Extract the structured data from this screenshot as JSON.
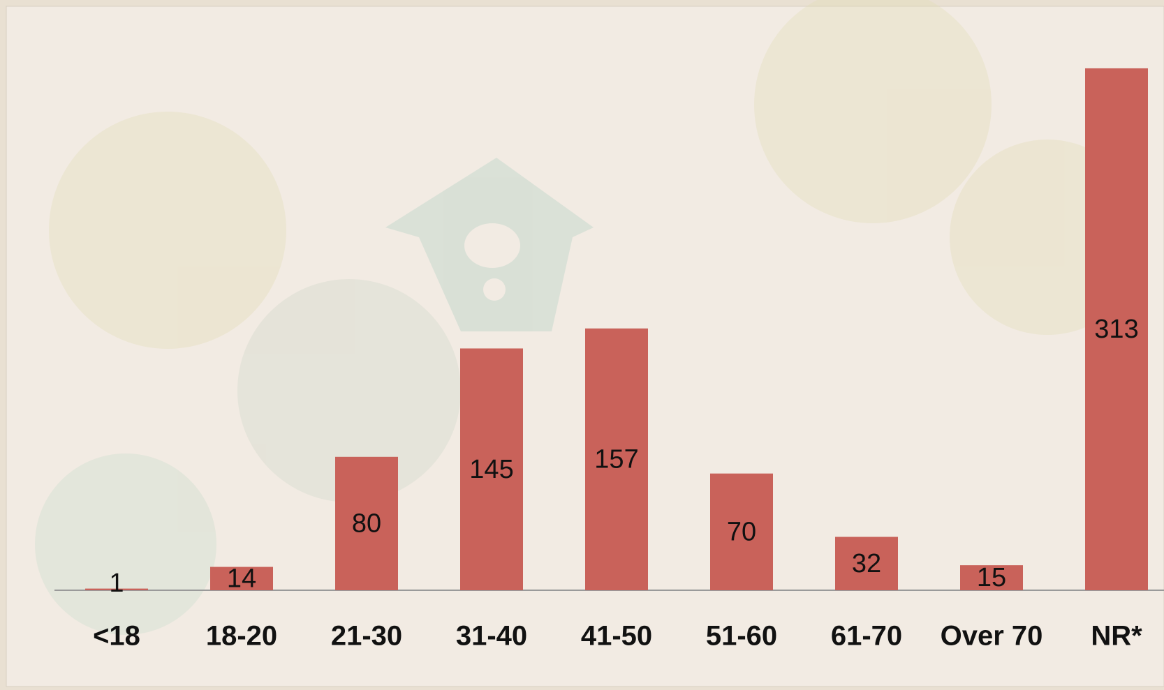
{
  "chart_data": {
    "type": "bar",
    "categories": [
      "<18",
      "18-20",
      "21-30",
      "31-40",
      "41-50",
      "51-60",
      "61-70",
      "Over 70",
      "NR*"
    ],
    "values": [
      1,
      14,
      80,
      145,
      157,
      70,
      32,
      15,
      313
    ],
    "color": "#c9625a"
  }
}
